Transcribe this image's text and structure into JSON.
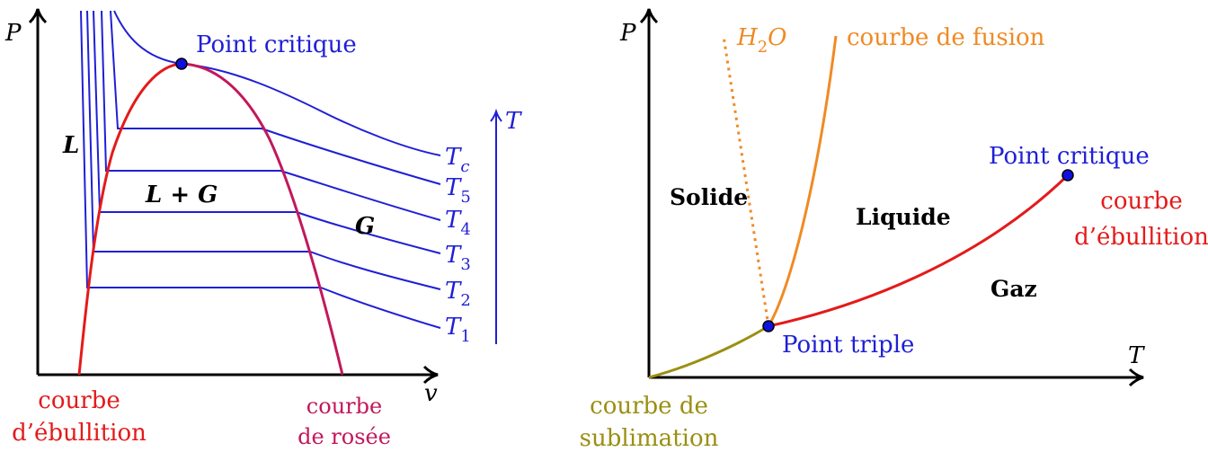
{
  "left_diagram": {
    "axis_y": "P",
    "axis_x": "v",
    "critical_point": "Point critique",
    "regions": {
      "liquid": "L",
      "mixture": "L + G",
      "gas": "G"
    },
    "temperature_arrow": "T",
    "isotherms": [
      "Tc",
      "T5",
      "T4",
      "T3",
      "T2",
      "T1"
    ],
    "curve_left_line1": "courbe",
    "curve_left_line2": "d’ébullition",
    "curve_right_line1": "courbe",
    "curve_right_line2": "de rosée"
  },
  "right_diagram": {
    "axis_y": "P",
    "axis_x": "T",
    "water_label": "H2O",
    "fusion_label": "courbe de fusion",
    "critical_point": "Point critique",
    "boiling_line1": "courbe",
    "boiling_line2": "d’ébullition",
    "regions": {
      "solid": "Solide",
      "liquid": "Liquide",
      "gas": "Gaz"
    },
    "triple_point": "Point triple",
    "sublimation_line1": "courbe de",
    "sublimation_line2": "sublimation"
  },
  "colors": {
    "isotherm": "#1f1fd6",
    "ebullition": "#e41a1a",
    "rosee": "#c2185b",
    "fusion": "#f08a24",
    "sublimation": "#9a8f12",
    "point": "#1010e0"
  }
}
